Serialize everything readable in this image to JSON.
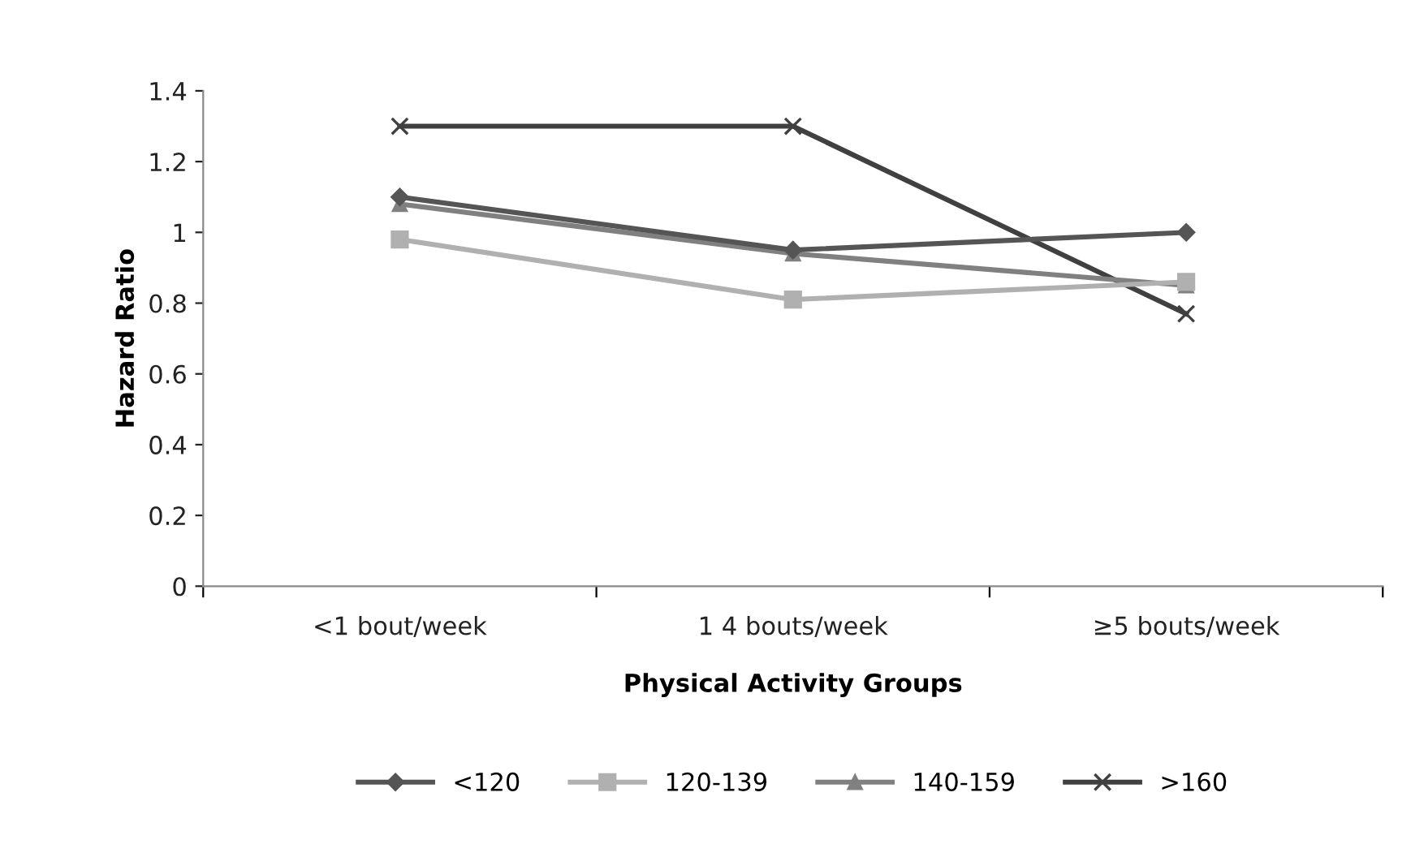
{
  "chart_data": {
    "type": "line",
    "xlabel": "Physical Activity Groups",
    "ylabel": "Hazard Ratio",
    "categories": [
      "<1 bout/week",
      "1 4 bouts/week",
      "≥5 bouts/week"
    ],
    "series": [
      {
        "name": "<120",
        "color": "#555555",
        "marker": "diamond",
        "values": [
          1.1,
          0.95,
          1.0
        ]
      },
      {
        "name": "120-139",
        "color": "#b0b0b0",
        "marker": "square",
        "values": [
          0.98,
          0.81,
          0.86
        ]
      },
      {
        "name": "140-159",
        "color": "#808080",
        "marker": "triangle",
        "values": [
          1.08,
          0.94,
          0.85
        ]
      },
      {
        "name": ">160",
        "color": "#404040",
        "marker": "cross",
        "values": [
          1.3,
          1.3,
          0.77
        ]
      }
    ],
    "ylim": [
      0,
      1.4
    ],
    "yticks": [
      0,
      0.2,
      0.4,
      0.6,
      0.8,
      1,
      1.2,
      1.4
    ],
    "grid": false,
    "legend": "bottom",
    "line_style": "solid"
  }
}
